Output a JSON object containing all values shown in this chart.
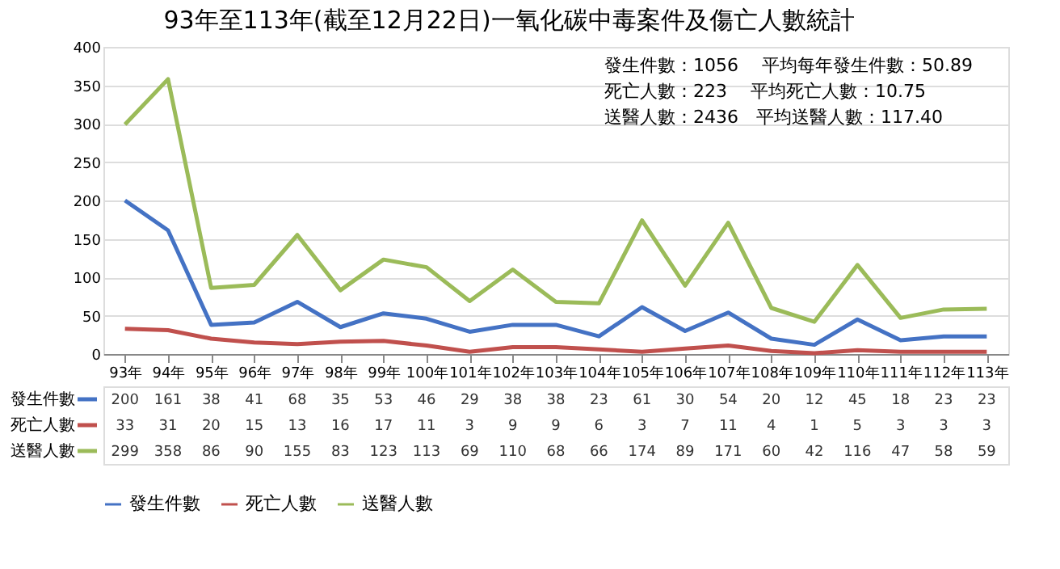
{
  "chart_data": {
    "type": "line",
    "title": "93年至113年(截至12月22日)一氧化碳中毒案件及傷亡人數統計",
    "categories": [
      "93年",
      "94年",
      "95年",
      "96年",
      "97年",
      "98年",
      "99年",
      "100年",
      "101年",
      "102年",
      "103年",
      "104年",
      "105年",
      "106年",
      "107年",
      "108年",
      "109年",
      "110年",
      "111年",
      "112年",
      "113年"
    ],
    "series": [
      {
        "name": "發生件數",
        "color": "#4472c4",
        "values": [
          200,
          161,
          38,
          41,
          68,
          35,
          53,
          46,
          29,
          38,
          38,
          23,
          61,
          30,
          54,
          20,
          12,
          45,
          18,
          23,
          23
        ]
      },
      {
        "name": "死亡人數",
        "color": "#c0504d",
        "values": [
          33,
          31,
          20,
          15,
          13,
          16,
          17,
          11,
          3,
          9,
          9,
          6,
          3,
          7,
          11,
          4,
          1,
          5,
          3,
          3,
          3
        ]
      },
      {
        "name": "送醫人數",
        "color": "#9bbb59",
        "values": [
          299,
          358,
          86,
          90,
          155,
          83,
          123,
          113,
          69,
          110,
          68,
          66,
          174,
          89,
          171,
          60,
          42,
          116,
          47,
          58,
          59
        ]
      }
    ],
    "ylim": [
      0,
      400
    ],
    "yticks": [
      0,
      50,
      100,
      150,
      200,
      250,
      300,
      350,
      400
    ],
    "grid": "y",
    "legend": "bottom",
    "data_labels": true,
    "annotations": [
      "發生件數：1056　 平均每年發生件數：50.89",
      "死亡人數：223　 平均死亡人數：10.75",
      "送醫人數：2436　平均送醫人數：117.40"
    ]
  }
}
